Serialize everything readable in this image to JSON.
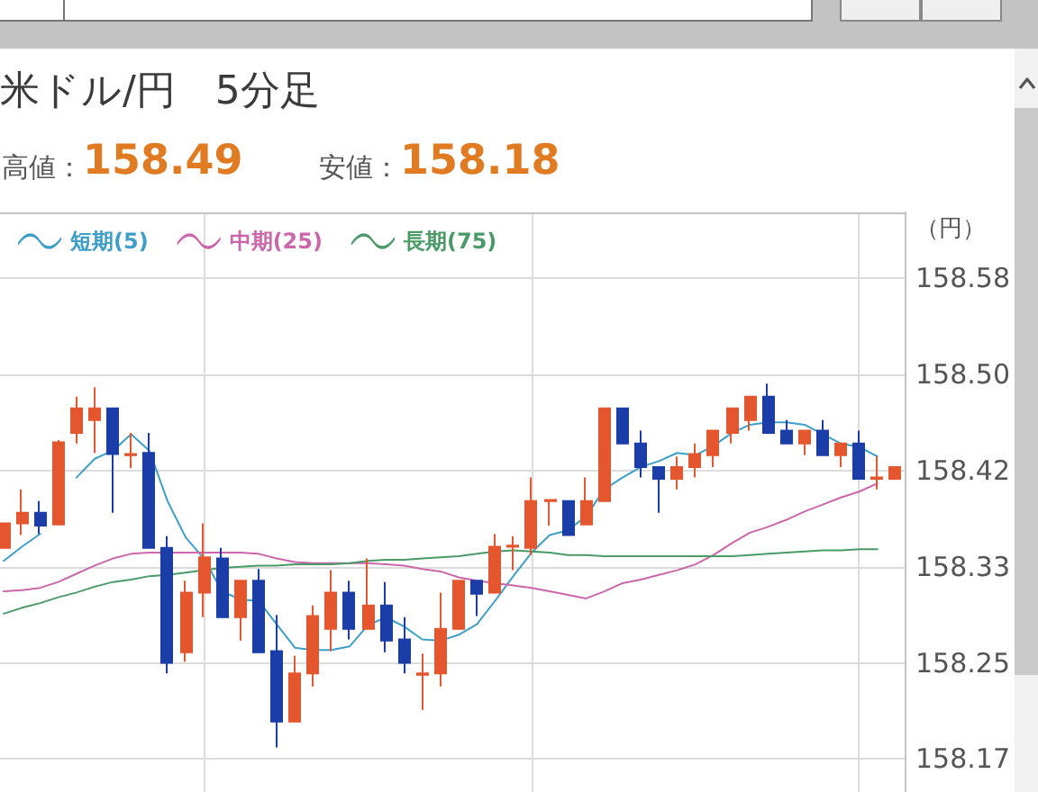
{
  "chart_data": {
    "type": "candlestick",
    "title": "米ドル/円　5分足",
    "ylabel": "（円）",
    "annotations": [
      "高値：158.49",
      "安値：158.18"
    ],
    "categories": [
      null,
      null,
      null,
      null,
      null,
      null,
      null,
      null,
      null,
      null,
      null,
      null,
      null,
      null,
      null,
      null,
      null,
      null,
      null,
      null,
      null,
      null,
      null,
      null,
      null,
      null,
      null,
      null,
      null,
      null,
      null,
      null,
      null,
      null,
      null,
      null,
      null,
      null,
      null,
      null,
      null,
      null,
      null,
      null,
      null,
      null,
      null,
      null,
      null,
      null
    ],
    "ohlc": [
      [
        158.35,
        158.371,
        158.35,
        158.371
      ],
      [
        158.371,
        158.4,
        158.361,
        158.38
      ],
      [
        158.38,
        158.39,
        158.362,
        158.369
      ],
      [
        158.37,
        158.442,
        158.37,
        158.44
      ],
      [
        158.448,
        158.479,
        158.439,
        158.469
      ],
      [
        158.459,
        158.487,
        158.431,
        158.469
      ],
      [
        158.469,
        158.469,
        158.38,
        158.43
      ],
      [
        158.429,
        158.448,
        158.418,
        158.43
      ],
      [
        158.431,
        158.448,
        158.35,
        158.35
      ],
      [
        158.35,
        158.36,
        158.243,
        158.252
      ],
      [
        158.261,
        158.322,
        158.253,
        158.312
      ],
      [
        158.312,
        158.371,
        158.291,
        158.342
      ],
      [
        158.341,
        158.35,
        158.291,
        158.291
      ],
      [
        158.291,
        158.322,
        158.271,
        158.322
      ],
      [
        158.322,
        158.332,
        158.261,
        158.261
      ],
      [
        158.262,
        158.293,
        158.18,
        158.202
      ],
      [
        158.202,
        158.258,
        158.202,
        158.243
      ],
      [
        158.243,
        158.301,
        158.232,
        158.292
      ],
      [
        158.281,
        158.331,
        158.262,
        158.312
      ],
      [
        158.312,
        158.322,
        158.272,
        158.281
      ],
      [
        158.281,
        158.341,
        158.281,
        158.301
      ],
      [
        158.301,
        158.321,
        158.261,
        158.271
      ],
      [
        158.272,
        158.291,
        158.243,
        158.252
      ],
      [
        158.242,
        158.26,
        158.212,
        158.243
      ],
      [
        158.243,
        158.312,
        158.232,
        158.281
      ],
      [
        158.281,
        158.322,
        158.281,
        158.322
      ],
      [
        158.322,
        158.322,
        158.292,
        158.311
      ],
      [
        158.312,
        158.362,
        158.312,
        158.351
      ],
      [
        158.351,
        158.36,
        158.331,
        158.352
      ],
      [
        158.35,
        158.41,
        158.344,
        158.39
      ],
      [
        158.39,
        158.391,
        158.369,
        158.391
      ],
      [
        158.39,
        158.39,
        158.361,
        158.361
      ],
      [
        158.37,
        158.41,
        158.37,
        158.39
      ],
      [
        158.39,
        158.469,
        158.39,
        158.469
      ],
      [
        158.469,
        158.469,
        158.439,
        158.439
      ],
      [
        158.439,
        158.45,
        158.41,
        158.419
      ],
      [
        158.419,
        158.419,
        158.38,
        158.409
      ],
      [
        158.409,
        158.428,
        158.4,
        158.419
      ],
      [
        158.419,
        158.439,
        158.41,
        158.43
      ],
      [
        158.429,
        158.45,
        158.419,
        158.45
      ],
      [
        158.448,
        158.469,
        158.439,
        158.469
      ],
      [
        158.459,
        158.479,
        158.45,
        158.479
      ],
      [
        158.479,
        158.49,
        158.448,
        158.448
      ],
      [
        158.45,
        158.459,
        158.439,
        158.439
      ],
      [
        158.439,
        158.45,
        158.429,
        158.45
      ],
      [
        158.45,
        158.459,
        158.429,
        158.429
      ],
      [
        158.429,
        158.439,
        158.419,
        158.439
      ],
      [
        158.439,
        158.45,
        158.409,
        158.409
      ],
      [
        158.409,
        158.428,
        158.4,
        158.41
      ],
      [
        158.409,
        158.419,
        158.409,
        158.419
      ]
    ],
    "colors": [
      "#e4572e",
      "#e4572e",
      "#1b3da8",
      "#e4572e",
      "#e4572e",
      "#e4572e",
      "#1b3da8",
      "#e4572e",
      "#1b3da8",
      "#1b3da8",
      "#e4572e",
      "#e4572e",
      "#1b3da8",
      "#e4572e",
      "#1b3da8",
      "#1b3da8",
      "#e4572e",
      "#e4572e",
      "#e4572e",
      "#1b3da8",
      "#e4572e",
      "#1b3da8",
      "#1b3da8",
      "#e4572e",
      "#e4572e",
      "#e4572e",
      "#1b3da8",
      "#e4572e",
      "#e4572e",
      "#e4572e",
      "#e4572e",
      "#1b3da8",
      "#e4572e",
      "#e4572e",
      "#1b3da8",
      "#1b3da8",
      "#1b3da8",
      "#e4572e",
      "#e4572e",
      "#e4572e",
      "#e4572e",
      "#e4572e",
      "#1b3da8",
      "#1b3da8",
      "#e4572e",
      "#1b3da8",
      "#e4572e",
      "#1b3da8",
      "#e4572e",
      "#e4572e"
    ],
    "series": [
      {
        "type": "line",
        "name": "短期(5)",
        "color": "#3d9fc8",
        "values": [
          158.339,
          158.351,
          158.362,
          null,
          158.41,
          158.426,
          158.433,
          158.447,
          158.433,
          158.39,
          158.359,
          158.341,
          158.313,
          158.306,
          158.305,
          158.285,
          158.265,
          158.263,
          158.263,
          158.266,
          158.284,
          158.291,
          158.283,
          158.272,
          158.271,
          158.276,
          158.285,
          158.305,
          158.326,
          158.346,
          158.361,
          158.365,
          158.377,
          158.4,
          158.41,
          158.419,
          158.424,
          158.431,
          158.429,
          158.437,
          158.448,
          158.455,
          158.457,
          158.457,
          158.455,
          158.447,
          158.439,
          158.436,
          158.428,
          null
        ]
      },
      {
        "type": "line",
        "name": "中期(25)",
        "color": "#cc66aa",
        "values": [
          158.313,
          158.314,
          158.316,
          158.321,
          158.328,
          158.335,
          158.341,
          158.345,
          158.346,
          158.346,
          158.346,
          158.346,
          158.346,
          158.346,
          158.345,
          158.341,
          158.338,
          158.337,
          158.337,
          158.337,
          158.337,
          158.336,
          158.335,
          158.332,
          158.33,
          158.325,
          158.322,
          158.32,
          158.318,
          158.316,
          158.313,
          158.31,
          158.307,
          158.313,
          158.32,
          158.323,
          158.327,
          158.331,
          158.336,
          158.344,
          158.354,
          158.363,
          158.368,
          158.374,
          158.381,
          158.387,
          158.393,
          158.398,
          158.405,
          null
        ]
      },
      {
        "type": "line",
        "name": "長期(75)",
        "color": "#4a9a68",
        "values": [
          158.294,
          158.299,
          158.303,
          158.308,
          158.312,
          158.317,
          158.321,
          158.323,
          158.326,
          158.327,
          158.329,
          158.331,
          158.333,
          158.334,
          158.335,
          158.335,
          158.336,
          158.336,
          158.336,
          158.337,
          158.339,
          158.34,
          158.34,
          158.341,
          158.342,
          158.343,
          158.345,
          158.347,
          158.348,
          158.347,
          158.346,
          158.344,
          158.344,
          158.343,
          158.343,
          158.343,
          158.343,
          158.343,
          158.343,
          158.343,
          158.343,
          158.344,
          158.345,
          158.346,
          158.347,
          158.348,
          158.348,
          158.349,
          158.349,
          null
        ]
      }
    ],
    "ylim": [
      158.142,
      158.636
    ],
    "yticks": [
      158.17,
      {
        "value": 158.252,
        "label": "158.25"
      },
      {
        "value": 158.334,
        "label": "158.33"
      },
      {
        "value": 158.416,
        "label": "158.42"
      },
      {
        "value": 158.498,
        "label": "158.50"
      },
      158.58
    ],
    "grid": true,
    "legend": "top left",
    "tick_labels": "y"
  }
}
